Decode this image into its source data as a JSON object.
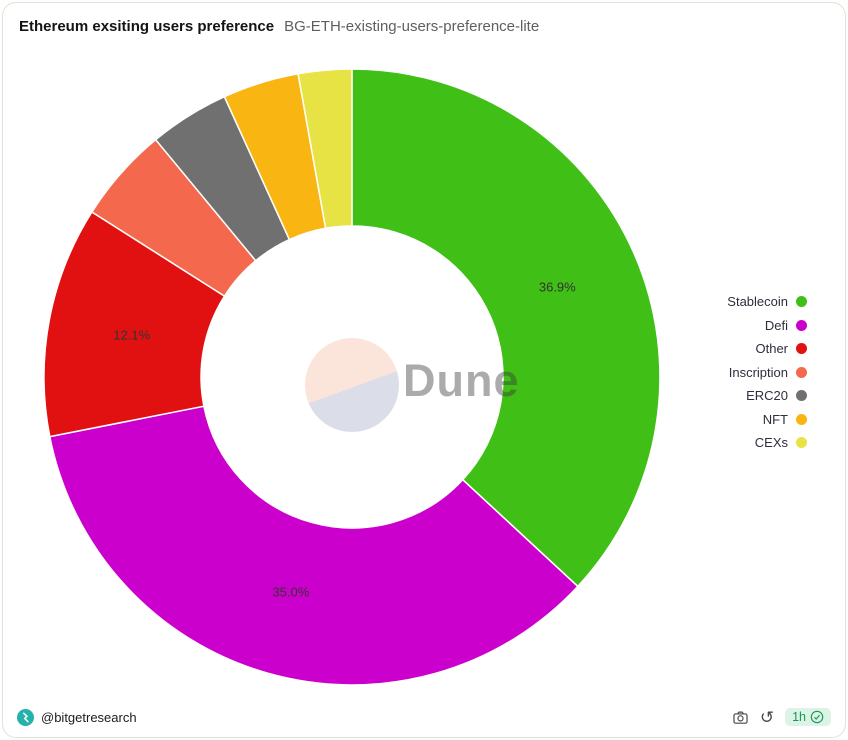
{
  "colors": {
    "card_border": "#d9e7d6",
    "title_text": "#141414",
    "subtitle_text": "#5f5f5f",
    "legend_text": "#2e2e3e",
    "slice_label_text": "#333333",
    "watermark_circle_top": "#fbe4da",
    "watermark_circle_bottom": "#dbdde9",
    "pill_bg": "#dcf3e6",
    "pill_text": "#169a54",
    "avatar_teal": "#25b2ac"
  },
  "header": {
    "title": "Ethereum exsiting users preference",
    "subtitle": "BG-ETH-existing-users-preference-lite"
  },
  "chart_data": {
    "type": "pie",
    "donut": true,
    "title": "Ethereum exsiting users preference",
    "legend_position": "right",
    "start_angle_deg": 0,
    "direction": "clockwise",
    "slices": [
      {
        "label": "Stablecoin",
        "value": 36.9,
        "data_label": "36.9%",
        "color": "#40bf17"
      },
      {
        "label": "Defi",
        "value": 35.0,
        "data_label": "35.0%",
        "color": "#cc00cc"
      },
      {
        "label": "Other",
        "value": 12.1,
        "data_label": "12.1%",
        "color": "#e21111"
      },
      {
        "label": "Inscription",
        "value": 5.0,
        "data_label": "",
        "color": "#f4684e"
      },
      {
        "label": "ERC20",
        "value": 4.2,
        "data_label": "",
        "color": "#707070"
      },
      {
        "label": "NFT",
        "value": 4.0,
        "data_label": "",
        "color": "#f9b612"
      },
      {
        "label": "CEXs",
        "value": 2.8,
        "data_label": "",
        "color": "#e7e345"
      }
    ]
  },
  "watermark": {
    "text": "Dune"
  },
  "footer": {
    "author_handle": "@bitgetresearch",
    "refresh_interval": "1h",
    "icons": {
      "camera": "camera-icon",
      "refresh_glyph": "↺",
      "check": "verified-check-icon",
      "avatar": "bitget-logo-icon"
    }
  }
}
